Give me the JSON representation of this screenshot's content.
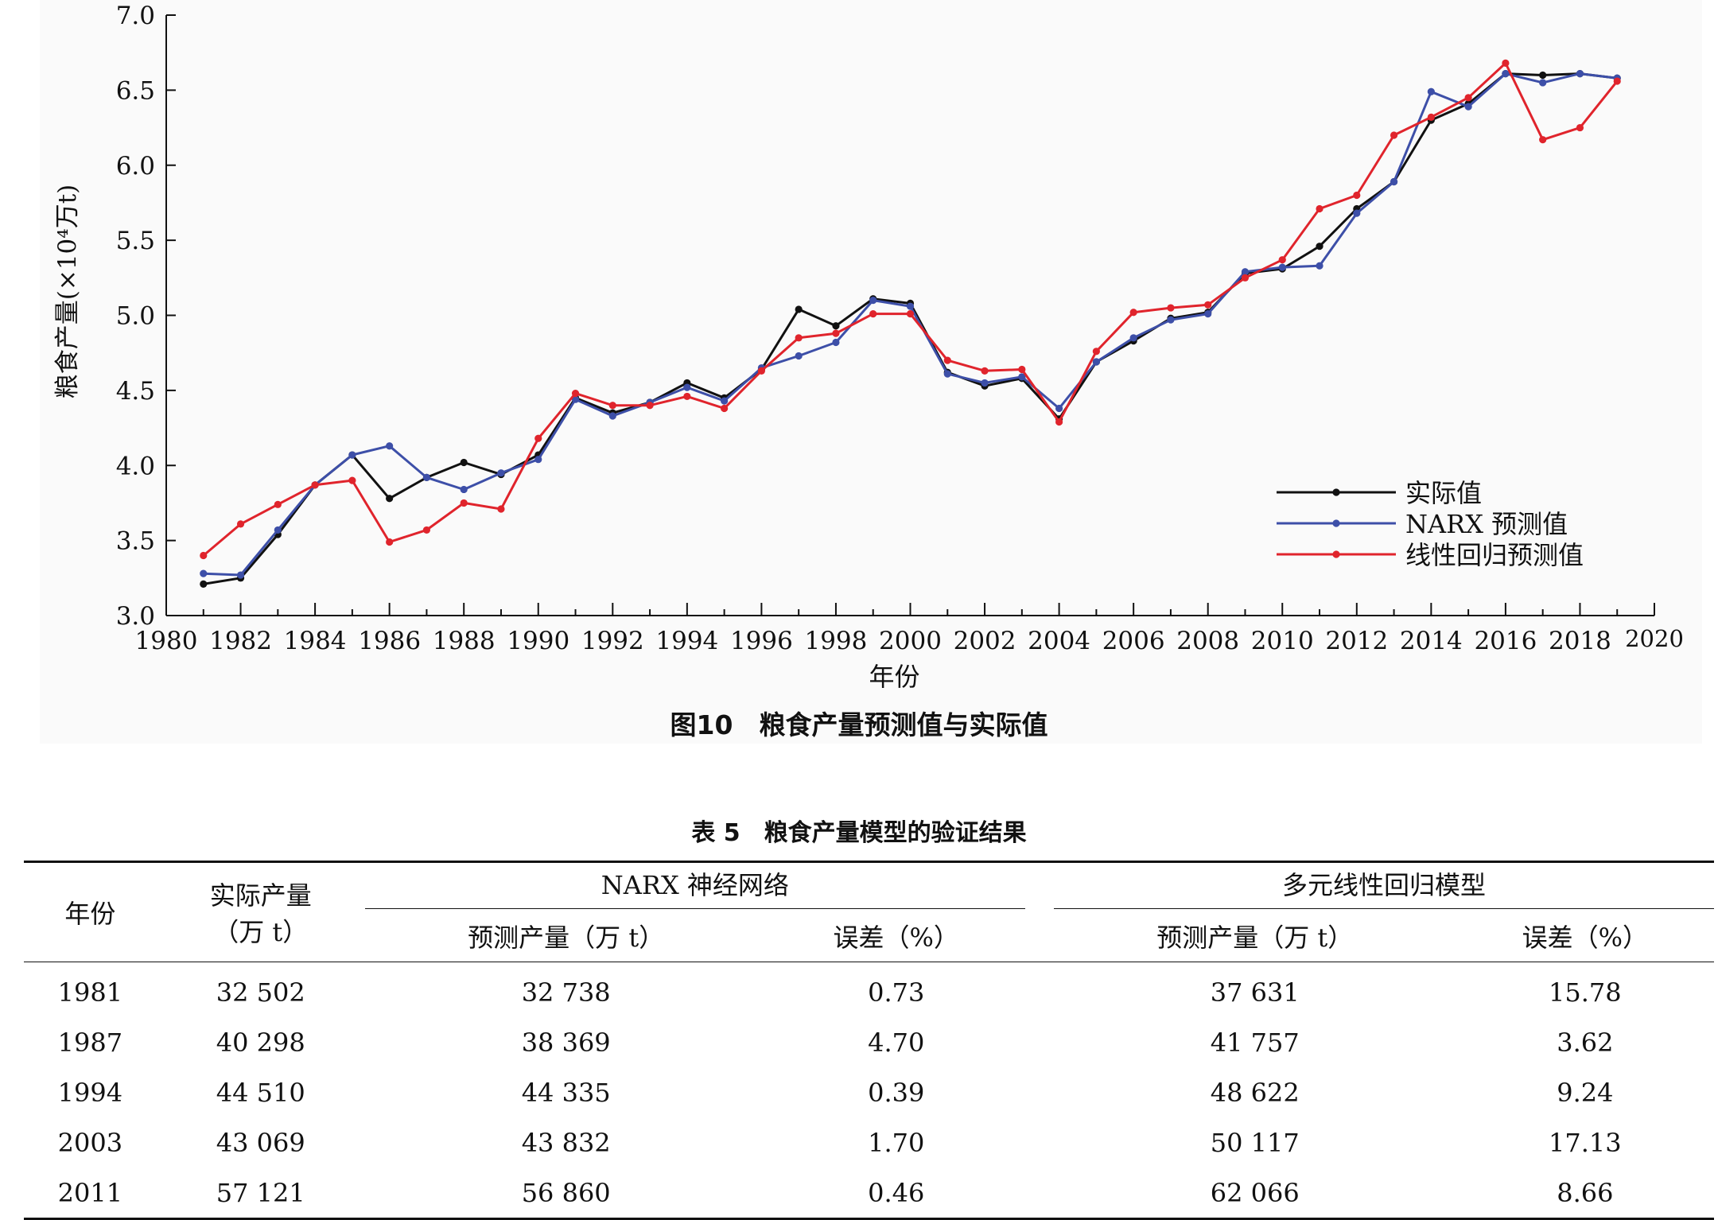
{
  "chart_data": {
    "type": "line",
    "ylabel": "粮食产量(×10⁴万t)",
    "xlabel": "年份",
    "xlim": [
      1980,
      2020
    ],
    "ylim": [
      3.0,
      7.0
    ],
    "x_ticks": [
      1980,
      1982,
      1984,
      1986,
      1988,
      1990,
      1992,
      1994,
      1996,
      1998,
      2000,
      2002,
      2004,
      2006,
      2008,
      2010,
      2012,
      2014,
      2016,
      2018,
      2020
    ],
    "y_ticks": [
      "3.0",
      "3.5",
      "4.0",
      "4.5",
      "5.0",
      "5.5",
      "6.0",
      "6.5",
      "7.0"
    ],
    "legend_position": "lower-right",
    "x": [
      1981,
      1982,
      1983,
      1984,
      1985,
      1986,
      1987,
      1988,
      1989,
      1990,
      1991,
      1992,
      1993,
      1994,
      1995,
      1996,
      1997,
      1998,
      1999,
      2000,
      2001,
      2002,
      2003,
      2004,
      2005,
      2006,
      2007,
      2008,
      2009,
      2010,
      2011,
      2012,
      2013,
      2014,
      2015,
      2016,
      2017,
      2018,
      2019
    ],
    "series": [
      {
        "name": "实际值",
        "color": "#111111",
        "values": [
          3.21,
          3.25,
          3.54,
          3.87,
          4.07,
          3.78,
          3.92,
          4.02,
          3.94,
          4.07,
          4.45,
          4.35,
          4.42,
          4.55,
          4.45,
          4.64,
          5.04,
          4.93,
          5.11,
          5.08,
          4.62,
          4.53,
          4.58,
          4.31,
          4.69,
          4.83,
          4.98,
          5.02,
          5.28,
          5.31,
          5.46,
          5.71,
          5.89,
          6.3,
          6.41,
          6.61,
          6.6,
          6.61,
          6.58
        ]
      },
      {
        "name": "NARX 预测值",
        "color": "#3d4fa8",
        "values": [
          3.28,
          3.27,
          3.57,
          3.87,
          4.07,
          4.13,
          3.92,
          3.84,
          3.95,
          4.04,
          4.44,
          4.33,
          4.42,
          4.52,
          4.43,
          4.65,
          4.73,
          4.82,
          5.1,
          5.06,
          4.61,
          4.55,
          4.59,
          4.38,
          4.69,
          4.85,
          4.97,
          5.01,
          5.29,
          5.32,
          5.33,
          5.68,
          5.89,
          6.49,
          6.39,
          6.61,
          6.55,
          6.61,
          6.58
        ]
      },
      {
        "name": "线性回归预测值",
        "color": "#e0242c",
        "values": [
          3.4,
          3.61,
          3.74,
          3.87,
          3.9,
          3.49,
          3.57,
          3.75,
          3.71,
          4.18,
          4.48,
          4.4,
          4.4,
          4.46,
          4.38,
          4.63,
          4.85,
          4.88,
          5.01,
          5.01,
          4.7,
          4.63,
          4.64,
          4.29,
          4.76,
          5.02,
          5.05,
          5.07,
          5.25,
          5.37,
          5.71,
          5.8,
          6.2,
          6.32,
          6.45,
          6.68,
          6.17,
          6.25,
          6.56
        ]
      }
    ]
  },
  "figure": {
    "caption": "图10　粮食产量预测值与实际值"
  },
  "table": {
    "caption": "表 5　粮食产量模型的验证结果",
    "headers": {
      "year": "年份",
      "actual_line1": "实际产量",
      "actual_line2": "（万 t）",
      "narx_group": "NARX 神经网络",
      "mlr_group": "多元线性回归模型",
      "pred_output": "预测产量（万 t）",
      "error": "误差（%）"
    },
    "rows": [
      {
        "year": "1981",
        "actual": "32 502",
        "narx_pred": "32 738",
        "narx_err": "0.73",
        "mlr_pred": "37 631",
        "mlr_err": "15.78"
      },
      {
        "year": "1987",
        "actual": "40 298",
        "narx_pred": "38 369",
        "narx_err": "4.70",
        "mlr_pred": "41 757",
        "mlr_err": "3.62"
      },
      {
        "year": "1994",
        "actual": "44 510",
        "narx_pred": "44 335",
        "narx_err": "0.39",
        "mlr_pred": "48 622",
        "mlr_err": "9.24"
      },
      {
        "year": "2003",
        "actual": "43 069",
        "narx_pred": "43 832",
        "narx_err": "1.70",
        "mlr_pred": "50 117",
        "mlr_err": "17.13"
      },
      {
        "year": "2011",
        "actual": "57 121",
        "narx_pred": "56 860",
        "narx_err": "0.46",
        "mlr_pred": "62 066",
        "mlr_err": "8.66"
      }
    ]
  }
}
